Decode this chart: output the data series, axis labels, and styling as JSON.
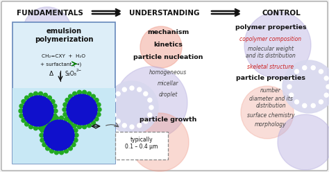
{
  "title_row": [
    "FUNDAMENTALS",
    "UNDERSTANDING",
    "CONTROL"
  ],
  "emulsion_title": "emulsion\npolymerization",
  "chemistry_line1": "CH₂=CXY  +  H₂O",
  "chemistry_line2": "+ surfactant (→)",
  "delta_text": "Δ",
  "s2o8_text": "S₂O₈",
  "s2o8_sup": "2−",
  "mid_bold": [
    "mechanism",
    "kinetics",
    "particle nucleation",
    "particle growth"
  ],
  "mid_italic": [
    "homogeneous",
    "micellar",
    "droplet"
  ],
  "right_bold1": "polymer properties",
  "right_bold2": "particle properties",
  "right_italic_red1": "copolymer composition",
  "right_italic_blk1": "molecular weight\nand its distribution",
  "right_italic_red2": "skeletal structure",
  "right_italic_blk2": "number",
  "right_italic_blk3": "diameter and its\ndistribution",
  "right_italic_blk4": "surface chemistry",
  "right_italic_blk5": "morphology",
  "typically_text": "typically\n0.1 – 0.4 μm",
  "circle_lavender": "#b8b0e0",
  "circle_pink": "#f0a090",
  "circle_dotted": "#d8d8ee",
  "ball_blue": "#1010cc",
  "ball_green": "#22aa22",
  "water_color": "#c8e8f5",
  "box_bg": "#ddeef8",
  "box_border": "#6688bb",
  "outer_border": "#aaaaaa",
  "arrow_col": "#111111",
  "text_dark": "#111111",
  "text_mid": "#444444",
  "text_red": "#cc2020",
  "bg_white": "#ffffff",
  "title_fs": 7.5,
  "bold_fs": 6.8,
  "italic_fs": 5.5,
  "chem_fs": 5.2
}
